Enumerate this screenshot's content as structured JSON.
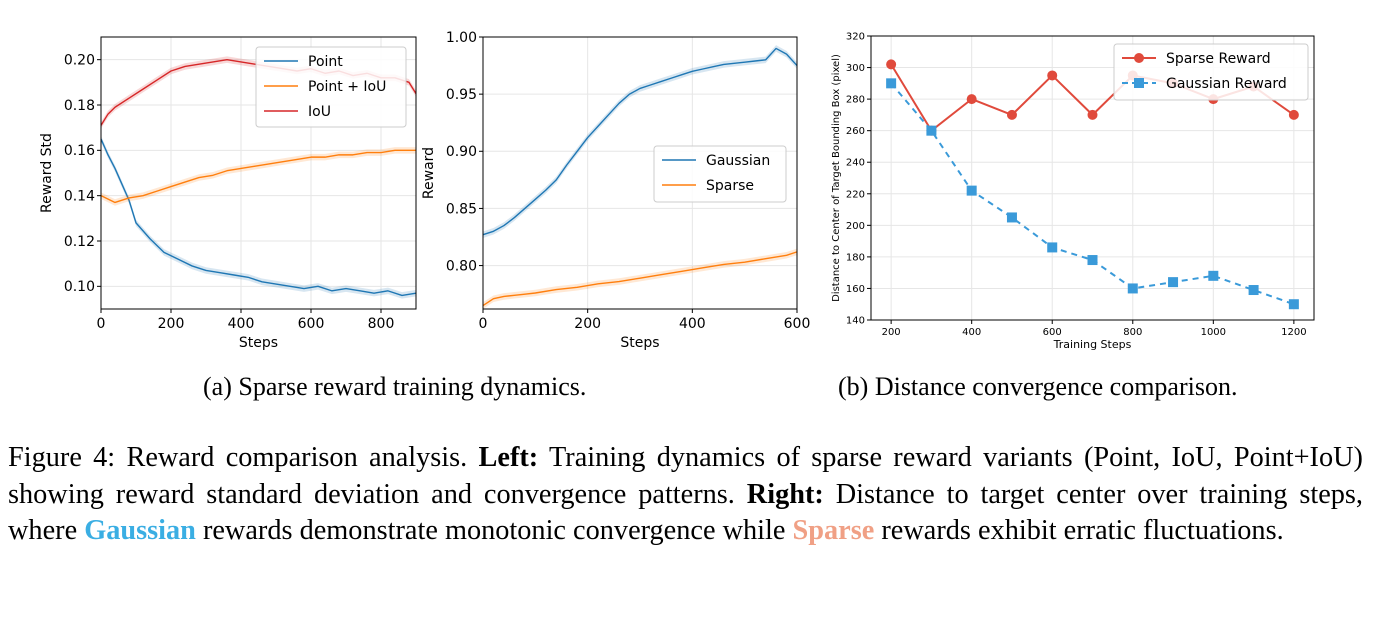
{
  "chart_data": [
    {
      "type": "line",
      "id": "chart1",
      "title": "",
      "xlabel": "Steps",
      "ylabel": "Reward Std",
      "xlim": [
        0,
        900
      ],
      "ylim": [
        0.09,
        0.21
      ],
      "xticks": [
        0,
        200,
        400,
        600,
        800
      ],
      "xtick_labels": [
        "0",
        "200",
        "400",
        "600",
        "800"
      ],
      "yticks": [
        0.1,
        0.12,
        0.14,
        0.16,
        0.18,
        0.2
      ],
      "ytick_labels": [
        "0.10",
        "0.12",
        "0.14",
        "0.16",
        "0.18",
        "0.20"
      ],
      "grid": true,
      "legend_position": "top-right",
      "series": [
        {
          "name": "Point",
          "color": "#1f77b4",
          "x": [
            0,
            20,
            40,
            60,
            80,
            100,
            140,
            180,
            220,
            260,
            300,
            340,
            380,
            420,
            460,
            500,
            540,
            580,
            620,
            660,
            700,
            740,
            780,
            820,
            860,
            900
          ],
          "values": [
            0.165,
            0.158,
            0.152,
            0.145,
            0.138,
            0.128,
            0.121,
            0.115,
            0.112,
            0.109,
            0.107,
            0.106,
            0.105,
            0.104,
            0.102,
            0.101,
            0.1,
            0.099,
            0.1,
            0.098,
            0.099,
            0.098,
            0.097,
            0.098,
            0.096,
            0.097
          ]
        },
        {
          "name": "Point + IoU",
          "color": "#ff7f0e",
          "x": [
            0,
            40,
            80,
            120,
            160,
            200,
            240,
            280,
            320,
            360,
            400,
            440,
            480,
            520,
            560,
            600,
            640,
            680,
            720,
            760,
            800,
            840,
            880,
            900
          ],
          "values": [
            0.14,
            0.137,
            0.139,
            0.14,
            0.142,
            0.144,
            0.146,
            0.148,
            0.149,
            0.151,
            0.152,
            0.153,
            0.154,
            0.155,
            0.156,
            0.157,
            0.157,
            0.158,
            0.158,
            0.159,
            0.159,
            0.16,
            0.16,
            0.16
          ]
        },
        {
          "name": "IoU",
          "color": "#d62728",
          "x": [
            0,
            20,
            40,
            80,
            120,
            160,
            200,
            240,
            280,
            320,
            360,
            400,
            440,
            480,
            520,
            560,
            600,
            640,
            680,
            720,
            760,
            800,
            840,
            880,
            900
          ],
          "values": [
            0.171,
            0.176,
            0.179,
            0.183,
            0.187,
            0.191,
            0.195,
            0.197,
            0.198,
            0.199,
            0.2,
            0.199,
            0.198,
            0.197,
            0.196,
            0.195,
            0.196,
            0.194,
            0.195,
            0.193,
            0.194,
            0.192,
            0.192,
            0.19,
            0.185
          ]
        }
      ]
    },
    {
      "type": "line",
      "id": "chart2",
      "title": "",
      "xlabel": "Steps",
      "ylabel": "Reward",
      "xlim": [
        0,
        600
      ],
      "ylim": [
        0.762,
        1.0
      ],
      "xticks": [
        0,
        200,
        400,
        600
      ],
      "xtick_labels": [
        "0",
        "200",
        "400",
        "600"
      ],
      "yticks": [
        0.8,
        0.85,
        0.9,
        0.95,
        1.0
      ],
      "ytick_labels": [
        "0.80",
        "0.85",
        "0.90",
        "0.95",
        "1.00"
      ],
      "grid": true,
      "legend_position": "center-right",
      "series": [
        {
          "name": "Gaussian",
          "color": "#1f77b4",
          "x": [
            0,
            20,
            40,
            60,
            80,
            100,
            120,
            140,
            160,
            180,
            200,
            220,
            240,
            260,
            280,
            300,
            320,
            340,
            360,
            380,
            400,
            420,
            440,
            460,
            480,
            500,
            520,
            540,
            560,
            580,
            600
          ],
          "values": [
            0.827,
            0.83,
            0.835,
            0.842,
            0.85,
            0.858,
            0.866,
            0.875,
            0.888,
            0.9,
            0.912,
            0.922,
            0.932,
            0.942,
            0.95,
            0.955,
            0.958,
            0.961,
            0.964,
            0.967,
            0.97,
            0.972,
            0.974,
            0.976,
            0.977,
            0.978,
            0.979,
            0.98,
            0.99,
            0.985,
            0.975
          ]
        },
        {
          "name": "Sparse",
          "color": "#ff7f0e",
          "x": [
            0,
            20,
            40,
            60,
            80,
            100,
            140,
            180,
            220,
            260,
            300,
            340,
            380,
            420,
            460,
            500,
            540,
            580,
            600
          ],
          "values": [
            0.765,
            0.771,
            0.773,
            0.774,
            0.775,
            0.776,
            0.779,
            0.781,
            0.784,
            0.786,
            0.789,
            0.792,
            0.795,
            0.798,
            0.801,
            0.803,
            0.806,
            0.809,
            0.812
          ]
        }
      ]
    },
    {
      "type": "line",
      "id": "chart3",
      "title": "",
      "xlabel": "Training Steps",
      "ylabel": "Distance to Center of Target Bounding Box (pixel)",
      "xlim": [
        150,
        1250
      ],
      "ylim": [
        140,
        320
      ],
      "xticks": [
        200,
        400,
        600,
        800,
        1000,
        1200
      ],
      "xtick_labels": [
        "200",
        "400",
        "600",
        "800",
        "1000",
        "1200"
      ],
      "yticks": [
        140,
        160,
        180,
        200,
        220,
        240,
        260,
        280,
        300,
        320
      ],
      "ytick_labels": [
        "140",
        "160",
        "180",
        "200",
        "220",
        "240",
        "260",
        "280",
        "300",
        "320"
      ],
      "grid": true,
      "legend_position": "top-right",
      "series": [
        {
          "name": "Sparse Reward",
          "color": "#e04a3c",
          "marker": "circle",
          "x": [
            200,
            300,
            400,
            500,
            600,
            700,
            800,
            900,
            1000,
            1100,
            1200
          ],
          "values": [
            302,
            260,
            280,
            270,
            295,
            270,
            295,
            290,
            280,
            288,
            270
          ]
        },
        {
          "name": "Gaussian Reward",
          "color": "#3a9ad9",
          "marker": "square",
          "dashed": true,
          "x": [
            200,
            300,
            400,
            500,
            600,
            700,
            800,
            900,
            1000,
            1100,
            1200
          ],
          "values": [
            290,
            260,
            222,
            205,
            186,
            178,
            160,
            164,
            168,
            159,
            150
          ]
        }
      ]
    }
  ],
  "subcaptions": {
    "a": "(a) Sparse reward training dynamics.",
    "b": "(b) Distance convergence comparison."
  },
  "caption": {
    "lead": "Figure 4: Reward comparison analysis. ",
    "left_label": "Left:",
    "part1": " Training dynamics of sparse reward variants (Point, IoU, Point+IoU) showing reward standard deviation and convergence patterns. ",
    "right_label": "Right:",
    "part2": " Distance to target center over training steps, where ",
    "gaussian": "Gaussian",
    "part3": " rewards demonstrate monotonic convergence while ",
    "sparse": "Sparse",
    "part4": " rewards exhibit erratic fluctuations."
  }
}
